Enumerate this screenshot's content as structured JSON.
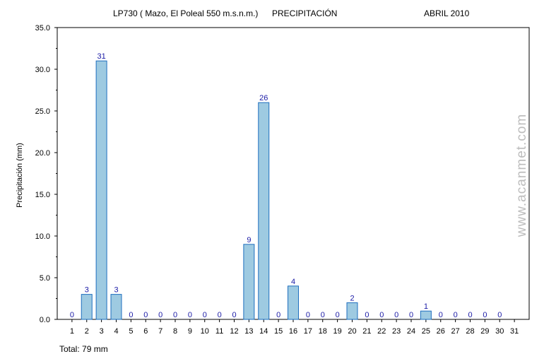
{
  "header": {
    "station": "LP730 ( Mazo, El Poleal 550 m.s.n.m.)",
    "title": "PRECIPITACIÓN",
    "period": "ABRIL 2010"
  },
  "total": "Total: 79 mm",
  "watermark": "www.acanmet.com",
  "colors": {
    "bar_fill": "#9ecae1",
    "bar_stroke": "#1f6fbf",
    "value_label": "#1a1aa6",
    "axis": "#000000",
    "watermark": "#bdbdbd"
  },
  "chart_data": {
    "type": "bar",
    "ylabel": "Precipitación (mm)",
    "xlabel": "",
    "ylim": [
      0,
      35
    ],
    "yticks": [
      "0.0",
      "5.0",
      "10.0",
      "15.0",
      "20.0",
      "25.0",
      "30.0",
      "35.0"
    ],
    "grid": false,
    "categories": [
      "1",
      "2",
      "3",
      "4",
      "5",
      "6",
      "7",
      "8",
      "9",
      "10",
      "11",
      "12",
      "13",
      "14",
      "15",
      "16",
      "17",
      "18",
      "19",
      "20",
      "21",
      "22",
      "23",
      "24",
      "25",
      "26",
      "27",
      "28",
      "29",
      "30",
      "31"
    ],
    "values": [
      0,
      3,
      31,
      3,
      0,
      0,
      0,
      0,
      0,
      0,
      0,
      0,
      9,
      26,
      0,
      4,
      0,
      0,
      0,
      2,
      0,
      0,
      0,
      0,
      1,
      0,
      0,
      0,
      0,
      0,
      null
    ],
    "value_labels": [
      "0",
      "3",
      "31",
      "3",
      "0",
      "0",
      "0",
      "0",
      "0",
      "0",
      "0",
      "0",
      "9",
      "26",
      "0",
      "4",
      "0",
      "0",
      "0",
      "2",
      "0",
      "0",
      "0",
      "0",
      "1",
      "0",
      "0",
      "0",
      "0",
      "0",
      ""
    ]
  }
}
